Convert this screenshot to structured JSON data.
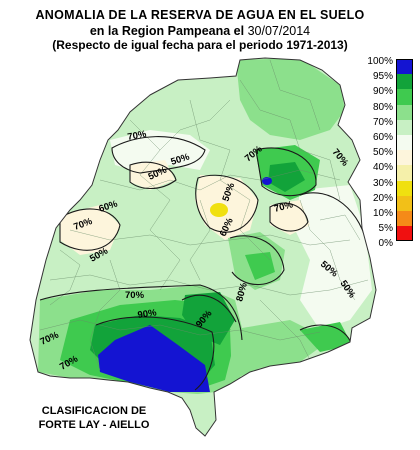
{
  "title": {
    "line1": "ANOMALIA DE LA RESERVA DE AGUA EN EL SUELO",
    "line2_prefix": "en la Region Pampeana el ",
    "line2_date": "30/07/2014",
    "line3": "(Respecto de igual fecha para el periodo 1971-2013)"
  },
  "legend": [
    {
      "label": "100%",
      "color": "#1414d2"
    },
    {
      "label": "95%",
      "color": "#1414d2"
    },
    {
      "label": "90%",
      "color": "#12a33a"
    },
    {
      "label": "80%",
      "color": "#3fca4f"
    },
    {
      "label": "70%",
      "color": "#8ce08c"
    },
    {
      "label": "60%",
      "color": "#c8f0c4"
    },
    {
      "label": "50%",
      "color": "#f4fbf0"
    },
    {
      "label": "40%",
      "color": "#fdf5dc"
    },
    {
      "label": "30%",
      "color": "#f5f0aa"
    },
    {
      "label": "20%",
      "color": "#f0e010"
    },
    {
      "label": "10%",
      "color": "#f2c018"
    },
    {
      "label": "5%",
      "color": "#f58a18"
    },
    {
      "label": "0%",
      "color": "#f01010"
    }
  ],
  "caption": {
    "line1": "CLASIFICACION DE",
    "line2": "FORTE LAY - AIELLO"
  },
  "contour_labels": [
    "70%",
    "50%",
    "50%",
    "60%",
    "70%",
    "70%",
    "50%",
    "60%",
    "70%",
    "50%",
    "50%",
    "70%",
    "50%",
    "70%",
    "90%",
    "90%",
    "80%",
    "70%",
    "70%"
  ]
}
